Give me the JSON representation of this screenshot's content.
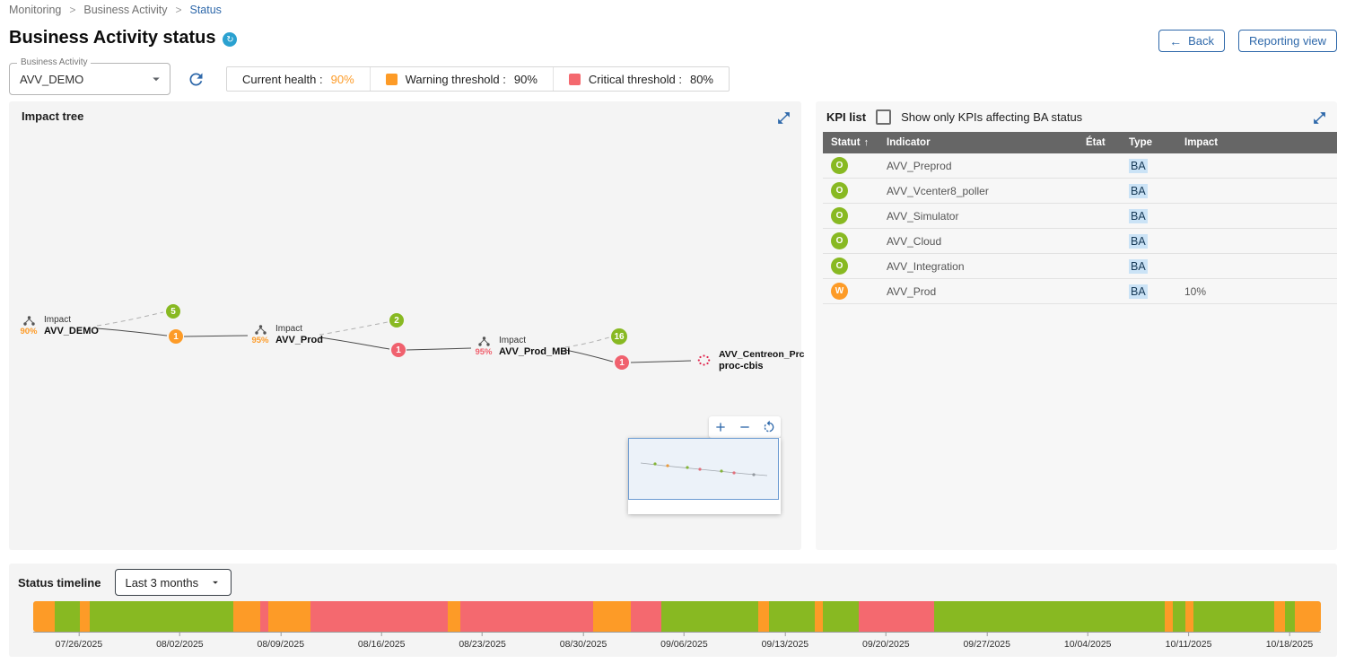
{
  "breadcrumb": {
    "items": [
      {
        "label": "Monitoring"
      },
      {
        "label": "Business Activity"
      },
      {
        "label": "Status"
      }
    ]
  },
  "header": {
    "title": "Business Activity status",
    "back_label": "Back",
    "reporting_label": "Reporting view"
  },
  "controls": {
    "ba_select": {
      "label": "Business Activity",
      "value": "AVV_DEMO"
    },
    "legend": {
      "current_health_label": "Current health :",
      "current_health_value": "90%",
      "warning_label": "Warning threshold :",
      "warning_value": "90%",
      "critical_label": "Critical threshold :",
      "critical_value": "80%"
    }
  },
  "impact_tree": {
    "title": "Impact tree",
    "nodes": [
      {
        "percent": "90%",
        "line1": "Impact",
        "line2": "AVV_DEMO",
        "ok_badge": "5",
        "impact_badge": "1"
      },
      {
        "percent": "95%",
        "line1": "Impact",
        "line2": "AVV_Prod",
        "ok_badge": "2",
        "impact_badge": "1"
      },
      {
        "percent": "95%",
        "line1": "Impact",
        "line2": "AVV_Prod_MBI",
        "ok_badge": "16",
        "impact_badge": "1"
      },
      {
        "line1": "AVV_Centreon_Prc",
        "line2": "proc-cbis"
      }
    ]
  },
  "kpi_list": {
    "title": "KPI list",
    "filter_label": "Show only KPIs affecting BA status",
    "columns": [
      "Statut",
      "Indicator",
      "État",
      "Type",
      "Impact"
    ],
    "rows": [
      {
        "status": "O",
        "severity": "ok",
        "indicator": "AVV_Preprod",
        "etat": "",
        "type": "BA",
        "impact": ""
      },
      {
        "status": "O",
        "severity": "ok",
        "indicator": "AVV_Vcenter8_poller",
        "etat": "",
        "type": "BA",
        "impact": ""
      },
      {
        "status": "O",
        "severity": "ok",
        "indicator": "AVV_Simulator",
        "etat": "",
        "type": "BA",
        "impact": ""
      },
      {
        "status": "O",
        "severity": "ok",
        "indicator": "AVV_Cloud",
        "etat": "",
        "type": "BA",
        "impact": ""
      },
      {
        "status": "O",
        "severity": "ok",
        "indicator": "AVV_Integration",
        "etat": "",
        "type": "BA",
        "impact": ""
      },
      {
        "status": "W",
        "severity": "warning",
        "indicator": "AVV_Prod",
        "etat": "",
        "type": "BA",
        "impact": "10%"
      }
    ]
  },
  "timeline": {
    "title": "Status timeline",
    "range_value": "Last 3 months",
    "ticks": [
      "07/26/2025",
      "08/02/2025",
      "08/09/2025",
      "08/16/2025",
      "08/23/2025",
      "08/30/2025",
      "09/06/2025",
      "09/13/2025",
      "09/20/2025",
      "09/27/2025",
      "10/04/2025",
      "10/11/2025",
      "10/18/2025"
    ],
    "segments": [
      {
        "status": "warning",
        "w": 1.7
      },
      {
        "status": "ok",
        "w": 1.9
      },
      {
        "status": "warning",
        "w": 0.8
      },
      {
        "status": "ok",
        "w": 11.1
      },
      {
        "status": "warning",
        "w": 2.1
      },
      {
        "status": "critical",
        "w": 0.6
      },
      {
        "status": "warning",
        "w": 3.3
      },
      {
        "status": "critical",
        "w": 10.6
      },
      {
        "status": "warning",
        "w": 1.0
      },
      {
        "status": "critical",
        "w": 10.3
      },
      {
        "status": "warning",
        "w": 2.9
      },
      {
        "status": "critical",
        "w": 2.4
      },
      {
        "status": "ok",
        "w": 7.5
      },
      {
        "status": "warning",
        "w": 0.8
      },
      {
        "status": "ok",
        "w": 3.6
      },
      {
        "status": "warning",
        "w": 0.6
      },
      {
        "status": "ok",
        "w": 2.8
      },
      {
        "status": "critical",
        "w": 5.8
      },
      {
        "status": "ok",
        "w": 17.9
      },
      {
        "status": "warning",
        "w": 0.6
      },
      {
        "status": "ok",
        "w": 1.0
      },
      {
        "status": "warning",
        "w": 0.6
      },
      {
        "status": "ok",
        "w": 6.3
      },
      {
        "status": "warning",
        "w": 0.8
      },
      {
        "status": "ok",
        "w": 0.8
      },
      {
        "status": "warning",
        "w": 2.0
      }
    ]
  },
  "colors": {
    "ok": "#88B922",
    "warning": "#FD9B27",
    "critical": "#F4696F",
    "accent": "#2E68AA"
  }
}
